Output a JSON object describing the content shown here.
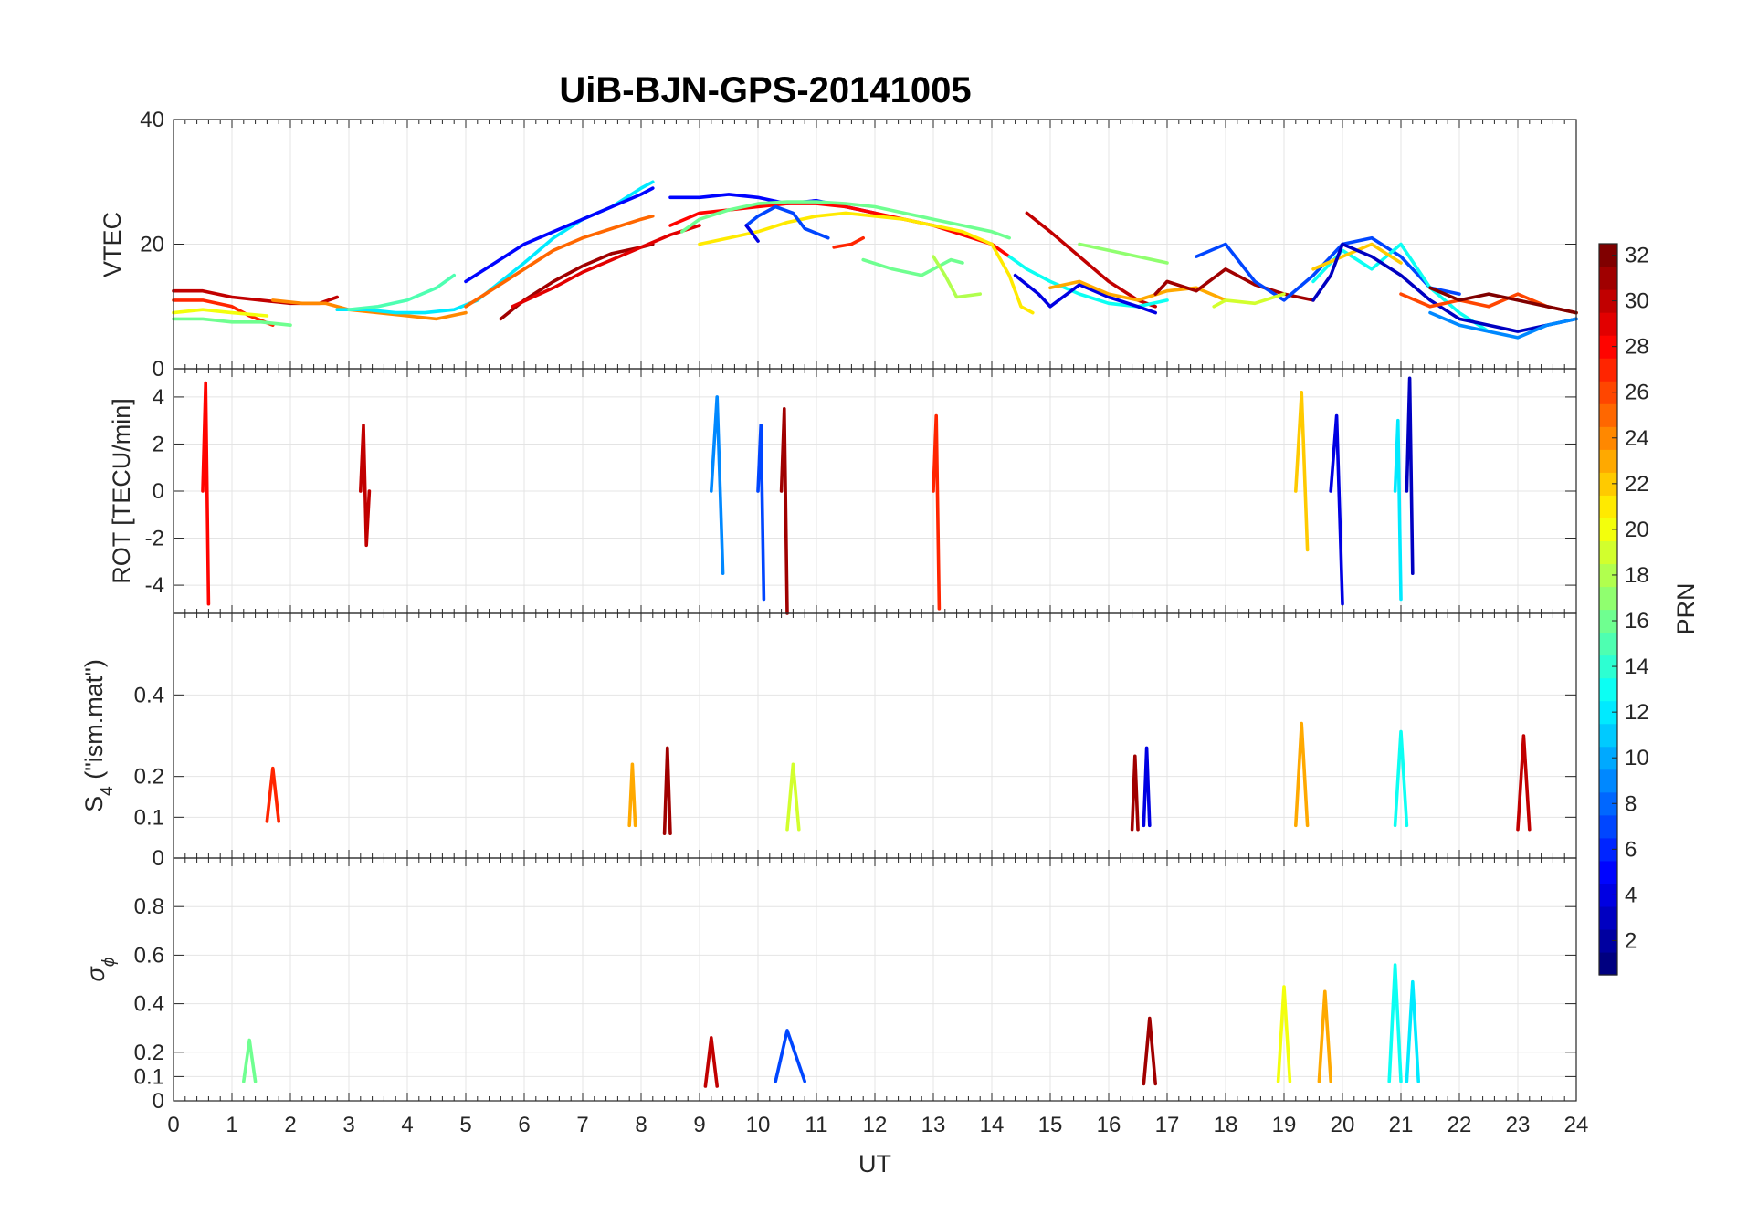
{
  "title": "UiB-BJN-GPS-20141005",
  "xlabel": "UT",
  "colorbar": {
    "label": "PRN",
    "range": [
      1,
      32
    ],
    "ticks": [
      "2",
      "4",
      "6",
      "8",
      "10",
      "12",
      "14",
      "16",
      "18",
      "20",
      "22",
      "24",
      "26",
      "28",
      "30",
      "32"
    ],
    "colormap": "jet"
  },
  "panel_labels": {
    "vtec": "VTEC",
    "rot": "ROT [TECU/min]",
    "s4_main": "S",
    "s4_sub": "4",
    "s4_rest": " (\"ism.mat\")",
    "sigma_main": "σ",
    "sigma_sub": "ϕ"
  },
  "chart_data": [
    {
      "id": "vtec",
      "type": "line",
      "ylabel": "VTEC",
      "xlim": [
        0,
        24
      ],
      "ylim": [
        0,
        40
      ],
      "yticks": [
        0,
        20,
        40
      ],
      "grid": true,
      "series": [
        {
          "prn": 30,
          "x": [
            0,
            0.5,
            1,
            1.5,
            2,
            2.5,
            2.8
          ],
          "y": [
            12.5,
            12.5,
            11.5,
            11,
            10.5,
            10.5,
            11.5
          ]
        },
        {
          "prn": 27,
          "x": [
            0,
            0.5,
            1,
            1.3,
            1.7
          ],
          "y": [
            11,
            11,
            10,
            8.5,
            7
          ]
        },
        {
          "prn": 24,
          "x": [
            1.7,
            2.2,
            2.6,
            3,
            3.5,
            4,
            4.5,
            5
          ],
          "y": [
            11,
            10.5,
            10.5,
            9.5,
            9,
            8.5,
            8,
            9
          ]
        },
        {
          "prn": 16,
          "x": [
            0,
            0.5,
            1,
            1.5,
            2
          ],
          "y": [
            8,
            8,
            7.5,
            7.5,
            7
          ]
        },
        {
          "prn": 20,
          "x": [
            0,
            0.5,
            1,
            1.6
          ],
          "y": [
            9,
            9.5,
            9,
            8.5
          ]
        },
        {
          "prn": 12,
          "x": [
            2.8,
            3.3,
            3.8,
            4.3,
            4.8,
            5.2,
            5.6,
            6,
            6.5,
            7,
            7.5,
            8,
            8.2
          ],
          "y": [
            9.5,
            9.5,
            9,
            9,
            9.5,
            11,
            14,
            17,
            21,
            24,
            26,
            29,
            30
          ]
        },
        {
          "prn": 15,
          "x": [
            3,
            3.5,
            4,
            4.5,
            4.8
          ],
          "y": [
            9.5,
            10,
            11,
            13,
            15
          ]
        },
        {
          "prn": 5,
          "x": [
            5,
            5.5,
            6,
            6.5,
            7,
            7.5,
            8,
            8.2
          ],
          "y": [
            14,
            17,
            20,
            22,
            24,
            26,
            28,
            29
          ]
        },
        {
          "prn": 25,
          "x": [
            5,
            5.5,
            6,
            6.5,
            7,
            7.5,
            8,
            8.2
          ],
          "y": [
            10,
            13,
            16,
            19,
            21,
            22.5,
            24,
            24.5
          ]
        },
        {
          "prn": 31,
          "x": [
            5.6,
            6,
            6.5,
            7,
            7.5,
            8,
            8.2
          ],
          "y": [
            8,
            11,
            14,
            16.5,
            18.5,
            19.5,
            20
          ]
        },
        {
          "prn": 29,
          "x": [
            5.8,
            6.5,
            7,
            7.5,
            8,
            8.5,
            9
          ],
          "y": [
            10,
            13,
            15.5,
            17.5,
            19.5,
            21.5,
            23
          ]
        },
        {
          "prn": 5,
          "x": [
            8.5,
            9,
            9.5,
            10,
            10.5,
            11,
            11.5,
            12
          ],
          "y": [
            27.5,
            27.5,
            28,
            27.5,
            26.5,
            27,
            26,
            25
          ]
        },
        {
          "prn": 28,
          "x": [
            8.5,
            9,
            9.5,
            10,
            10.5,
            11,
            11.5,
            12,
            12.5,
            13,
            13.5,
            14,
            14.3
          ],
          "y": [
            23,
            25,
            25.5,
            26,
            26.5,
            26.5,
            26,
            25,
            24,
            23,
            21.5,
            20,
            18
          ]
        },
        {
          "prn": 16,
          "x": [
            8.7,
            9,
            9.5,
            10,
            10.5,
            11,
            11.5,
            12,
            12.5,
            13,
            13.5,
            14,
            14.3
          ],
          "y": [
            22,
            24,
            25.5,
            26.5,
            26.8,
            26.8,
            26.5,
            26,
            25,
            24,
            23,
            22,
            21
          ]
        },
        {
          "prn": 21,
          "x": [
            9,
            9.5,
            10,
            10.5,
            11,
            11.5,
            12,
            12.5,
            13,
            13.5,
            14,
            14.3,
            14.5,
            14.7
          ],
          "y": [
            20,
            21,
            22,
            23.5,
            24.5,
            25,
            24.5,
            24,
            23,
            22,
            20,
            15,
            10,
            9
          ]
        },
        {
          "prn": 7,
          "x": [
            9.8,
            10,
            10.3,
            10.6,
            10.8,
            11.2
          ],
          "y": [
            23,
            24.5,
            26,
            25,
            22.5,
            21
          ]
        },
        {
          "prn": 4,
          "x": [
            9.8,
            10
          ],
          "y": [
            23,
            20.5
          ]
        },
        {
          "prn": 27,
          "x": [
            11.3,
            11.6,
            11.8
          ],
          "y": [
            19.5,
            20,
            21
          ]
        },
        {
          "prn": 16,
          "x": [
            11.8,
            12.3,
            12.8,
            13,
            13.3,
            13.5
          ],
          "y": [
            17.5,
            16,
            15,
            16,
            17.5,
            17
          ]
        },
        {
          "prn": 18,
          "x": [
            13,
            13.2,
            13.4,
            13.8
          ],
          "y": [
            18,
            15,
            11.5,
            12
          ]
        },
        {
          "prn": 30,
          "x": [
            14.6,
            15,
            15.5,
            16,
            16.5,
            16.8
          ],
          "y": [
            25,
            22,
            18,
            14,
            11,
            10
          ]
        },
        {
          "prn": 13,
          "x": [
            14.3,
            14.6,
            15,
            15.5,
            16,
            16.5,
            17
          ],
          "y": [
            18,
            16,
            14,
            12,
            10.5,
            10,
            11
          ]
        },
        {
          "prn": 4,
          "x": [
            14.4,
            14.8,
            15,
            15.5,
            16,
            16.5,
            16.8
          ],
          "y": [
            15,
            12,
            10,
            13.5,
            11.5,
            10,
            9
          ]
        },
        {
          "prn": 17,
          "x": [
            15.5,
            16,
            16.5,
            17
          ],
          "y": [
            20,
            19,
            18,
            17
          ]
        },
        {
          "prn": 23,
          "x": [
            15,
            15.5,
            16,
            16.5,
            17,
            17.5,
            18
          ],
          "y": [
            13,
            14,
            12,
            11,
            12.5,
            13,
            11
          ]
        },
        {
          "prn": 31,
          "x": [
            16.8,
            17,
            17.5,
            18,
            18.5,
            19,
            19.5
          ],
          "y": [
            12,
            14,
            12.5,
            16,
            13.5,
            12,
            11
          ]
        },
        {
          "prn": 7,
          "x": [
            17.5,
            18,
            18.5,
            19,
            19.5,
            20,
            20.5,
            21,
            21.5,
            22
          ],
          "y": [
            18,
            20,
            14,
            11,
            15,
            20,
            21,
            18,
            13,
            12
          ]
        },
        {
          "prn": 19,
          "x": [
            17.8,
            18,
            18.5,
            19
          ],
          "y": [
            10,
            11,
            10.5,
            12
          ]
        },
        {
          "prn": 13,
          "x": [
            19.5,
            20,
            20.5,
            21,
            21.5,
            22,
            22.5
          ],
          "y": [
            14,
            19,
            16,
            20,
            13,
            9,
            6
          ]
        },
        {
          "prn": 22,
          "x": [
            19.5,
            20,
            20.5,
            21
          ],
          "y": [
            16,
            18,
            20,
            17
          ]
        },
        {
          "prn": 3,
          "x": [
            19.5,
            19.8,
            20,
            20.5,
            21,
            21.5,
            22,
            22.5,
            23,
            23.5,
            24
          ],
          "y": [
            11,
            15,
            20,
            18,
            15,
            11,
            8,
            7,
            6,
            7,
            8
          ]
        },
        {
          "prn": 26,
          "x": [
            21,
            21.5,
            22,
            22.5,
            23,
            23.5,
            24
          ],
          "y": [
            12,
            10,
            11,
            10,
            12,
            10,
            9
          ]
        },
        {
          "prn": 32,
          "x": [
            21.5,
            22,
            22.5,
            23,
            23.5,
            24
          ],
          "y": [
            13,
            11,
            12,
            11,
            10,
            9
          ]
        },
        {
          "prn": 9,
          "x": [
            21.5,
            22,
            22.5,
            23,
            23.5,
            24
          ],
          "y": [
            9,
            7,
            6,
            5,
            7,
            8
          ]
        }
      ]
    },
    {
      "id": "rot",
      "type": "line",
      "ylabel": "ROT [TECU/min]",
      "xlim": [
        0,
        24
      ],
      "ylim": [
        -5.2,
        5.2
      ],
      "yticks": [
        -4,
        -2,
        0,
        2,
        4
      ],
      "grid": true,
      "series": [
        {
          "prn": 28,
          "x": [
            0.5,
            0.55,
            0.6
          ],
          "y": [
            0,
            4.6,
            -4.8
          ]
        },
        {
          "prn": 31,
          "x": [
            10.4,
            10.45,
            10.5
          ],
          "y": [
            0,
            3.5,
            -5.2
          ]
        },
        {
          "prn": 27,
          "x": [
            13,
            13.05,
            13.1
          ],
          "y": [
            0,
            3.2,
            -5
          ]
        },
        {
          "prn": 9,
          "x": [
            9.2,
            9.3,
            9.4
          ],
          "y": [
            0,
            4,
            -3.5
          ]
        },
        {
          "prn": 4,
          "x": [
            19.8,
            19.9,
            20
          ],
          "y": [
            0,
            3.2,
            -4.8
          ]
        },
        {
          "prn": 22,
          "x": [
            19.2,
            19.3,
            19.4
          ],
          "y": [
            0,
            4.2,
            -2.5
          ]
        },
        {
          "prn": 3,
          "x": [
            21.1,
            21.15,
            21.2
          ],
          "y": [
            0,
            4.8,
            -3.5
          ]
        },
        {
          "prn": 12,
          "x": [
            20.9,
            20.95,
            21
          ],
          "y": [
            0,
            3,
            -4.6
          ]
        },
        {
          "prn": 7,
          "x": [
            10,
            10.05,
            10.1
          ],
          "y": [
            0,
            2.8,
            -4.6
          ]
        },
        {
          "prn": 30,
          "x": [
            3.2,
            3.25,
            3.3,
            3.35
          ],
          "y": [
            0,
            2.8,
            -2.3,
            0
          ]
        }
      ]
    },
    {
      "id": "s4",
      "type": "line",
      "ylabel": "S4 (\"ism.mat\")",
      "xlim": [
        0,
        24
      ],
      "ylim": [
        0,
        0.6
      ],
      "yticks": [
        0,
        0.1,
        0.2,
        0.4
      ],
      "grid": true,
      "series": [
        {
          "prn": 31,
          "x": [
            8.4,
            8.45,
            8.5
          ],
          "y": [
            0.06,
            0.27,
            0.06
          ]
        },
        {
          "prn": 31,
          "x": [
            16.4,
            16.45,
            16.5
          ],
          "y": [
            0.07,
            0.25,
            0.07
          ]
        },
        {
          "prn": 4,
          "x": [
            16.6,
            16.65,
            16.7
          ],
          "y": [
            0.08,
            0.27,
            0.08
          ]
        },
        {
          "prn": 23,
          "x": [
            19.2,
            19.3,
            19.4
          ],
          "y": [
            0.08,
            0.33,
            0.08
          ]
        },
        {
          "prn": 13,
          "x": [
            20.9,
            21,
            21.1
          ],
          "y": [
            0.08,
            0.31,
            0.08
          ]
        },
        {
          "prn": 30,
          "x": [
            23,
            23.1,
            23.2
          ],
          "y": [
            0.07,
            0.3,
            0.07
          ]
        },
        {
          "prn": 27,
          "x": [
            1.6,
            1.7,
            1.8
          ],
          "y": [
            0.09,
            0.22,
            0.09
          ]
        },
        {
          "prn": 23,
          "x": [
            7.8,
            7.85,
            7.9
          ],
          "y": [
            0.08,
            0.23,
            0.08
          ]
        },
        {
          "prn": 19,
          "x": [
            10.5,
            10.6,
            10.7
          ],
          "y": [
            0.07,
            0.23,
            0.07
          ]
        }
      ]
    },
    {
      "id": "sigma_phi",
      "type": "line",
      "ylabel": "σϕ",
      "xlim": [
        0,
        24
      ],
      "ylim": [
        0,
        1
      ],
      "yticks": [
        0,
        0.1,
        0.2,
        0.4,
        0.6,
        0.8
      ],
      "grid": true,
      "series": [
        {
          "prn": 13,
          "x": [
            20.8,
            20.9,
            21
          ],
          "y": [
            0.08,
            0.56,
            0.08
          ]
        },
        {
          "prn": 20,
          "x": [
            18.9,
            19,
            19.1
          ],
          "y": [
            0.08,
            0.47,
            0.08
          ]
        },
        {
          "prn": 23,
          "x": [
            19.6,
            19.7,
            19.8
          ],
          "y": [
            0.08,
            0.45,
            0.08
          ]
        },
        {
          "prn": 12,
          "x": [
            21.1,
            21.2,
            21.3
          ],
          "y": [
            0.08,
            0.49,
            0.08
          ]
        },
        {
          "prn": 31,
          "x": [
            16.6,
            16.7,
            16.8
          ],
          "y": [
            0.07,
            0.34,
            0.07
          ]
        },
        {
          "prn": 30,
          "x": [
            9.1,
            9.2,
            9.3
          ],
          "y": [
            0.06,
            0.26,
            0.06
          ]
        },
        {
          "prn": 7,
          "x": [
            10.3,
            10.5,
            10.8
          ],
          "y": [
            0.08,
            0.29,
            0.08
          ]
        },
        {
          "prn": 16,
          "x": [
            1.2,
            1.3,
            1.4
          ],
          "y": [
            0.08,
            0.25,
            0.08
          ]
        }
      ]
    }
  ]
}
